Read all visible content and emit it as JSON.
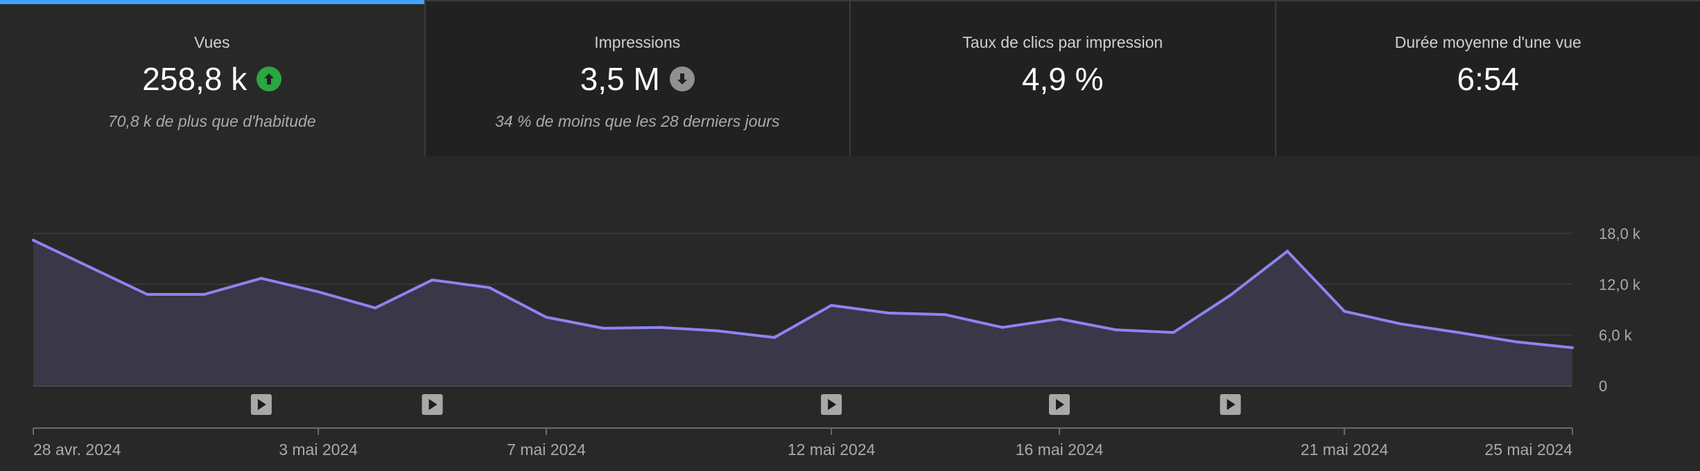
{
  "metrics": [
    {
      "label": "Vues",
      "value": "258,8 k",
      "trend": "up",
      "trend_icon": "arrow-up-icon",
      "trend_color": "#2ba640",
      "subtitle": "70,8 k de plus que d'habitude",
      "active": true
    },
    {
      "label": "Impressions",
      "value": "3,5 M",
      "trend": "down",
      "trend_icon": "arrow-down-icon",
      "trend_color": "#909090",
      "subtitle": "34 % de moins que les 28 derniers jours",
      "active": false
    },
    {
      "label": "Taux de clics par impression",
      "value": "4,9 %",
      "trend": null,
      "subtitle": "",
      "active": false
    },
    {
      "label": "Durée moyenne d'une vue",
      "value": "6:54",
      "trend": null,
      "subtitle": "",
      "active": false
    }
  ],
  "chart_data": {
    "type": "area",
    "x": [
      "2024-04-28",
      "2024-04-29",
      "2024-04-30",
      "2024-05-01",
      "2024-05-02",
      "2024-05-03",
      "2024-05-04",
      "2024-05-05",
      "2024-05-06",
      "2024-05-07",
      "2024-05-08",
      "2024-05-09",
      "2024-05-10",
      "2024-05-11",
      "2024-05-12",
      "2024-05-13",
      "2024-05-14",
      "2024-05-15",
      "2024-05-16",
      "2024-05-17",
      "2024-05-18",
      "2024-05-19",
      "2024-05-20",
      "2024-05-21",
      "2024-05-22",
      "2024-05-23",
      "2024-05-24",
      "2024-05-25"
    ],
    "series": [
      {
        "values": [
          17200,
          14000,
          10800,
          10800,
          12700,
          11100,
          9200,
          12500,
          11600,
          8100,
          6800,
          6900,
          6500,
          5700,
          9500,
          8600,
          8400,
          6900,
          7900,
          6600,
          6300,
          10700,
          15900,
          8800,
          7300,
          6300,
          5200,
          4500
        ]
      }
    ],
    "ylim": [
      0,
      18000
    ],
    "yticks": [
      0,
      6000,
      12000,
      18000
    ],
    "ytick_labels": [
      "0",
      "6,0 k",
      "12,0 k",
      "18,0 k"
    ],
    "xtick_labels": [
      {
        "date": "2024-04-28",
        "label": "28 avr. 2024"
      },
      {
        "date": "2024-05-03",
        "label": "3 mai 2024"
      },
      {
        "date": "2024-05-07",
        "label": "7 mai 2024"
      },
      {
        "date": "2024-05-12",
        "label": "12 mai 2024"
      },
      {
        "date": "2024-05-16",
        "label": "16 mai 2024"
      },
      {
        "date": "2024-05-21",
        "label": "21 mai 2024"
      },
      {
        "date": "2024-05-25",
        "label": "25 mai 2024"
      }
    ],
    "video_markers": [
      "2024-05-02",
      "2024-05-05",
      "2024-05-12",
      "2024-05-16",
      "2024-05-19"
    ],
    "line_color": "#8c84f0",
    "fill_color": "#3a3748",
    "grid": true,
    "y_axis_side": "right"
  }
}
